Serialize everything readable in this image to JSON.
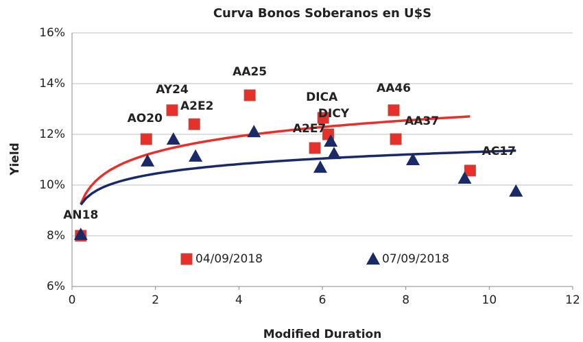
{
  "chart_data": {
    "type": "scatter",
    "title": "Curva Bonos Soberanos en U$S",
    "x_label": "Modified Duration",
    "y_label": "Yield",
    "xlim": [
      0,
      12
    ],
    "xticks": [
      0,
      2,
      4,
      6,
      8,
      10,
      12
    ],
    "ylim": [
      6,
      16
    ],
    "yticks": [
      {
        "value": 6,
        "label": "6%"
      },
      {
        "value": 8,
        "label": "8%"
      },
      {
        "value": 10,
        "label": "10%"
      },
      {
        "value": 12,
        "label": "12%"
      },
      {
        "value": 14,
        "label": "14%"
      },
      {
        "value": 16,
        "label": "16%"
      }
    ],
    "grid": true,
    "trendline": "logarithmic",
    "legend": "bottom",
    "series": [
      {
        "name": "04/09/2018",
        "color": "#e8302a",
        "marker": "square",
        "labels": [
          "AN18",
          "AO20",
          "AY24",
          "A2E2",
          "AA25",
          "A2E7",
          "DICA",
          "DICY",
          "AA46",
          "AA37",
          "AC17"
        ],
        "x": [
          0.21,
          1.78,
          2.4,
          2.93,
          4.26,
          5.82,
          6.02,
          6.14,
          7.71,
          7.76,
          9.54
        ],
        "values": [
          8.0,
          11.81,
          12.95,
          12.4,
          13.54,
          11.46,
          12.65,
          12.0,
          12.95,
          11.81,
          10.57
        ]
      },
      {
        "name": "07/09/2018",
        "color": "#1a2a66",
        "marker": "triangle",
        "x": [
          0.21,
          1.81,
          2.43,
          2.96,
          4.36,
          5.95,
          6.2,
          6.28,
          8.17,
          9.41,
          10.64
        ],
        "values": [
          8.05,
          10.95,
          11.81,
          11.14,
          12.1,
          10.7,
          11.73,
          11.24,
          11.0,
          10.27,
          9.76
        ]
      }
    ]
  }
}
